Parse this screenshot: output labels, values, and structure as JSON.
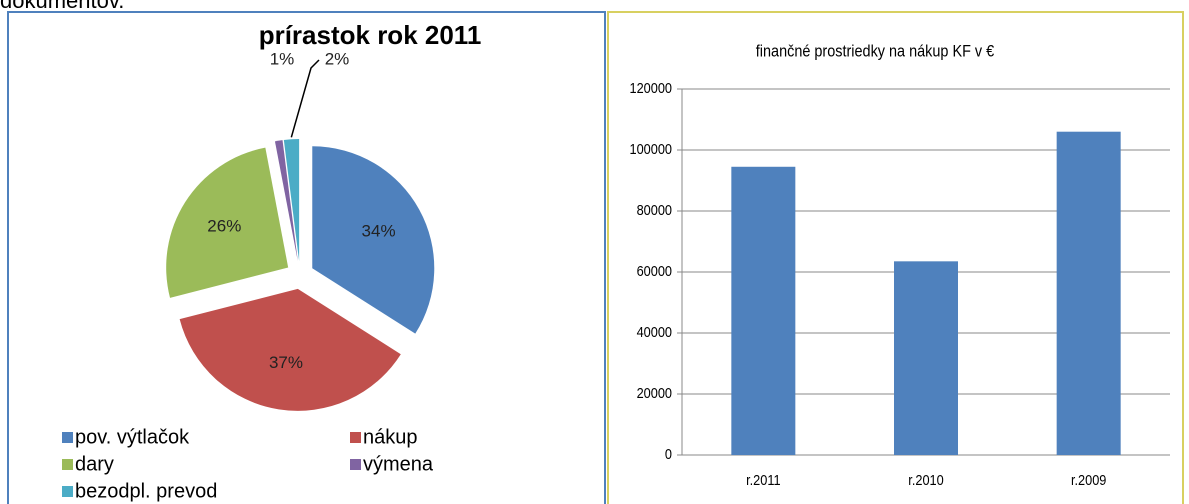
{
  "header": {
    "text": "dokumentov."
  },
  "chart_data": [
    {
      "type": "pie",
      "title": "prírastok rok 2011",
      "categories": [
        "pov. výtlačok",
        "nákup",
        "dary",
        "výmena",
        "bezodpl. prevod"
      ],
      "values": [
        34,
        37,
        26,
        1,
        2
      ],
      "value_labels": [
        "34%",
        "37%",
        "26%",
        "1%",
        "2%"
      ],
      "colors": [
        "#4f81bd",
        "#c0504d",
        "#9bbb59",
        "#8064a2",
        "#4bacc6"
      ],
      "legend": "bottom"
    },
    {
      "type": "bar",
      "title": "finančné prostriedky na nákup KF v €",
      "categories": [
        "r.2011",
        "r.2010",
        "r.2009"
      ],
      "values": [
        94500,
        63500,
        106000
      ],
      "color": "#4f81bd",
      "ylim": [
        0,
        120000
      ],
      "yticks": [
        0,
        20000,
        40000,
        60000,
        80000,
        100000,
        120000
      ],
      "grid": true
    }
  ]
}
